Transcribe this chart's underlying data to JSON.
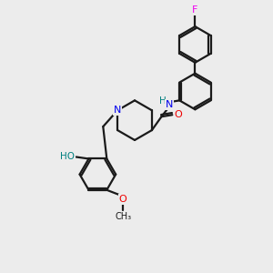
{
  "background_color": "#ececec",
  "bond_color": "#1a1a1a",
  "atom_colors": {
    "N": "#0000ee",
    "O": "#ee0000",
    "F": "#ee00ee",
    "HO": "#008080",
    "C": "#1a1a1a"
  },
  "figsize": [
    3.0,
    3.0
  ],
  "dpi": 100,
  "ring_r": 20,
  "lw": 1.6
}
